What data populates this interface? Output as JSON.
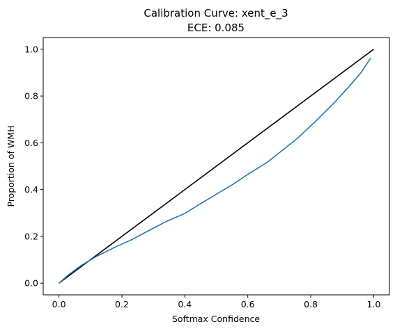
{
  "chart_data": {
    "type": "line",
    "title": "Calibration Curve: xent_e_3",
    "subtitle": "ECE: 0.085",
    "xlabel": "Softmax Confidence",
    "ylabel": "Proportion of WMH",
    "xlim": [
      -0.05,
      1.05
    ],
    "ylim": [
      -0.05,
      1.05
    ],
    "xticks": [
      "0.0",
      "0.2",
      "0.4",
      "0.6",
      "0.8",
      "1.0"
    ],
    "yticks": [
      "0.0",
      "0.2",
      "0.4",
      "0.6",
      "0.8",
      "1.0"
    ],
    "grid": false,
    "series": [
      {
        "color": "#000000",
        "x": [
          0.0,
          1.0
        ],
        "y": [
          0.0,
          1.0
        ]
      },
      {
        "color": "#1f77b4",
        "x": [
          0.0,
          0.03,
          0.07,
          0.12,
          0.18,
          0.23,
          0.29,
          0.34,
          0.4,
          0.45,
          0.5,
          0.55,
          0.6,
          0.66,
          0.71,
          0.76,
          0.81,
          0.87,
          0.92,
          0.96,
          0.99
        ],
        "y": [
          0.0,
          0.035,
          0.075,
          0.115,
          0.155,
          0.185,
          0.228,
          0.263,
          0.298,
          0.34,
          0.38,
          0.42,
          0.465,
          0.515,
          0.568,
          0.622,
          0.685,
          0.765,
          0.838,
          0.9,
          0.962
        ]
      }
    ]
  }
}
